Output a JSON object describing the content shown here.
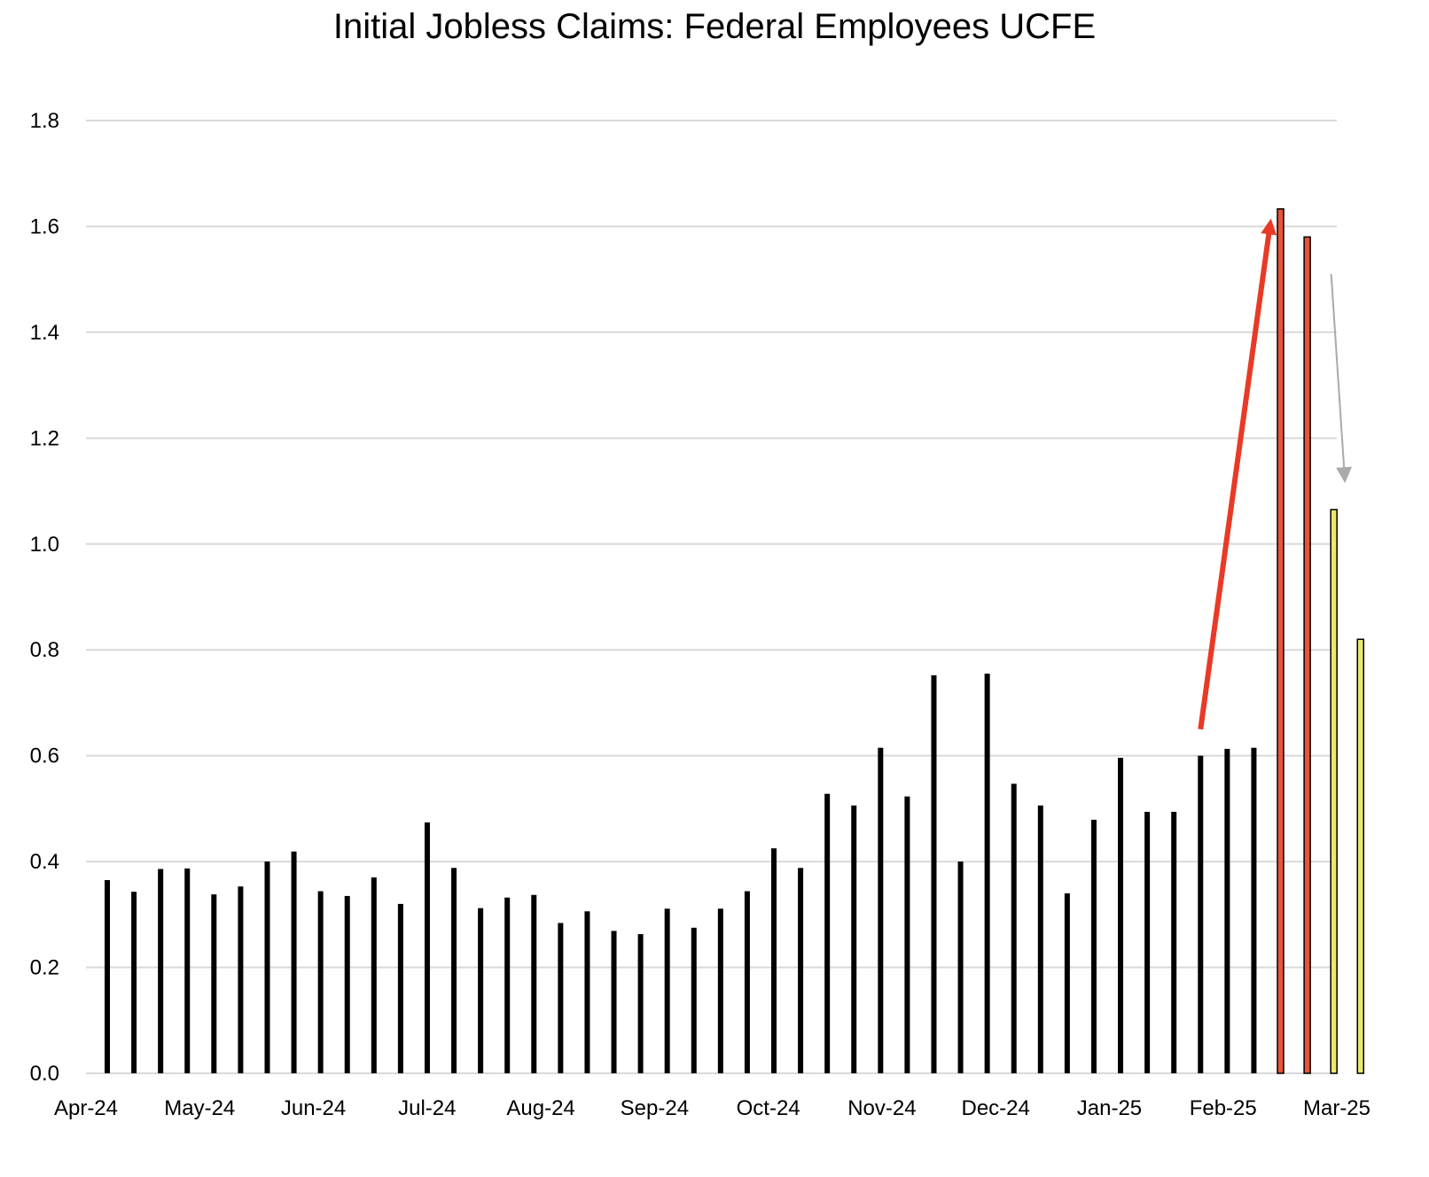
{
  "chart_data": {
    "type": "bar",
    "title": "Initial Jobless Claims: Federal Employees UCFE",
    "ylim": [
      0,
      1.8
    ],
    "y_ticks": [
      "0.0",
      "0.2",
      "0.4",
      "0.6",
      "0.8",
      "1.0",
      "1.2",
      "1.4",
      "1.6",
      "1.8"
    ],
    "x_tick_labels": [
      "Apr-24",
      "May-24",
      "Jun-24",
      "Jul-24",
      "Aug-24",
      "Sep-24",
      "Oct-24",
      "Nov-24",
      "Dec-24",
      "Jan-25",
      "Feb-25",
      "Mar-25"
    ],
    "grid": true,
    "legend": "none",
    "values": [
      0.365,
      0.343,
      0.386,
      0.387,
      0.338,
      0.353,
      0.4,
      0.419,
      0.344,
      0.335,
      0.37,
      0.32,
      0.474,
      0.388,
      0.312,
      0.332,
      0.337,
      0.284,
      0.306,
      0.269,
      0.263,
      0.311,
      0.275,
      0.311,
      0.344,
      0.425,
      0.388,
      0.528,
      0.506,
      0.615,
      0.523,
      0.752,
      0.4,
      0.755,
      0.547,
      0.506,
      0.34,
      0.479,
      0.596,
      0.494,
      0.494,
      0.6,
      0.613,
      0.615,
      1.633,
      1.58,
      1.065,
      0.82
    ],
    "bar_colors": {
      "default": "#000000",
      "highlight_fill": "#e8543a",
      "recent_fill": "#ece96a"
    },
    "highlight_indices": [
      44,
      45
    ],
    "recent_indices": [
      46,
      47
    ],
    "annotations": [
      {
        "type": "arrow",
        "color": "#e83a26",
        "from_index": 41,
        "from_value": 0.65,
        "to_index": 43.6,
        "to_value": 1.6
      },
      {
        "type": "arrow",
        "color": "#aaaaaa",
        "from_index": 45.9,
        "from_value": 1.51,
        "to_index": 46.4,
        "to_value": 1.13
      }
    ]
  }
}
